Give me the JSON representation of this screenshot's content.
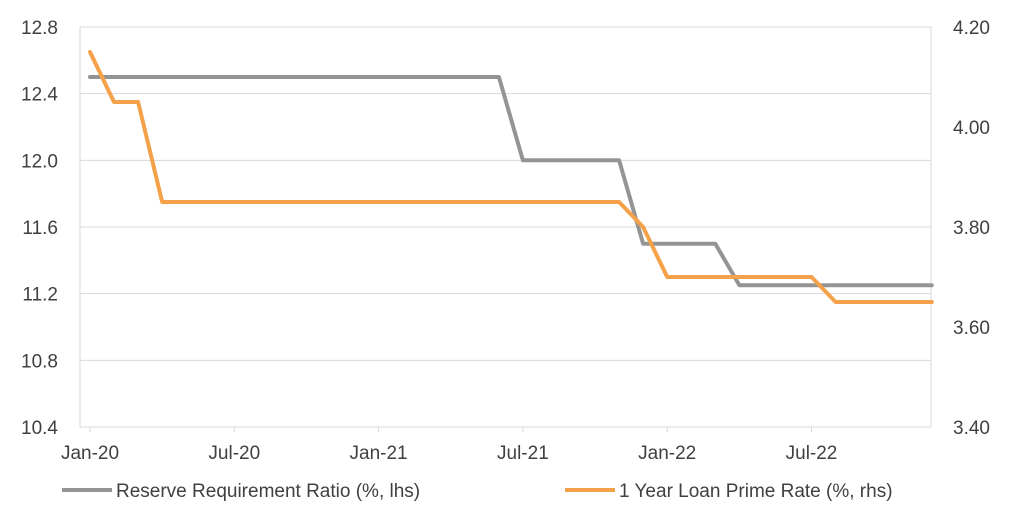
{
  "chart_data": {
    "type": "line",
    "title": "",
    "xlabel": "",
    "ylabel": "",
    "grid": true,
    "legend_position": "bottom",
    "x_ticks": [
      "Jan-20",
      "Jul-20",
      "Jan-21",
      "Jul-21",
      "Jan-22",
      "Jul-22"
    ],
    "x": [
      "2020-01",
      "2020-02",
      "2020-03",
      "2020-04",
      "2020-05",
      "2020-06",
      "2020-07",
      "2020-08",
      "2020-09",
      "2020-10",
      "2020-11",
      "2020-12",
      "2021-01",
      "2021-02",
      "2021-03",
      "2021-04",
      "2021-05",
      "2021-06",
      "2021-07",
      "2021-08",
      "2021-09",
      "2021-10",
      "2021-11",
      "2021-12",
      "2022-01",
      "2022-02",
      "2022-03",
      "2022-04",
      "2022-05",
      "2022-06",
      "2022-07",
      "2022-08",
      "2022-09",
      "2022-10",
      "2022-11",
      "2022-12"
    ],
    "y_left": {
      "ticks": [
        "10.4",
        "10.8",
        "11.2",
        "11.6",
        "12.0",
        "12.4",
        "12.8"
      ],
      "ylim": [
        10.4,
        12.8
      ]
    },
    "y_right": {
      "ticks": [
        "3.40",
        "3.60",
        "3.80",
        "4.00",
        "4.20"
      ],
      "ylim": [
        3.4,
        4.2
      ]
    },
    "series": [
      {
        "name": "Reserve Requirement Ratio (%, lhs)",
        "axis": "left",
        "color": "#949494",
        "values": [
          12.5,
          12.5,
          12.5,
          12.5,
          12.5,
          12.5,
          12.5,
          12.5,
          12.5,
          12.5,
          12.5,
          12.5,
          12.5,
          12.5,
          12.5,
          12.5,
          12.5,
          12.5,
          12.0,
          12.0,
          12.0,
          12.0,
          12.0,
          11.5,
          11.5,
          11.5,
          11.5,
          11.25,
          11.25,
          11.25,
          11.25,
          11.25,
          11.25,
          11.25,
          11.25,
          11.25
        ]
      },
      {
        "name": "1 Year Loan Prime Rate (%, rhs)",
        "axis": "right",
        "color": "#f4a14a",
        "values": [
          4.15,
          4.05,
          4.05,
          3.85,
          3.85,
          3.85,
          3.85,
          3.85,
          3.85,
          3.85,
          3.85,
          3.85,
          3.85,
          3.85,
          3.85,
          3.85,
          3.85,
          3.85,
          3.85,
          3.85,
          3.85,
          3.85,
          3.85,
          3.8,
          3.7,
          3.7,
          3.7,
          3.7,
          3.7,
          3.7,
          3.7,
          3.65,
          3.65,
          3.65,
          3.65,
          3.65
        ]
      }
    ]
  }
}
